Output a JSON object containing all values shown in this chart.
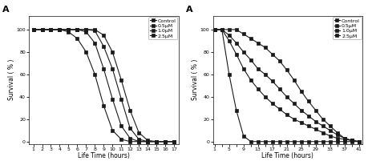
{
  "left_panel": {
    "label": "A",
    "xlabel": "Life Time (hours)",
    "ylabel": "Survival ( % )",
    "yticks": [
      0,
      20,
      40,
      60,
      80,
      100
    ],
    "ytick_labels": [
      "0",
      "20",
      "40",
      "60",
      "80",
      "100"
    ],
    "xticks": [
      1,
      2,
      3,
      4,
      5,
      6,
      7,
      8,
      9,
      10,
      11,
      12,
      13,
      14,
      15,
      16,
      17
    ],
    "xlim": [
      0.5,
      17.5
    ],
    "ylim": [
      -2,
      112
    ],
    "series": [
      {
        "label": "Control",
        "x": [
          1,
          2,
          3,
          4,
          5,
          6,
          7,
          8,
          9,
          10,
          11,
          12,
          13,
          14,
          15,
          16,
          17
        ],
        "y": [
          100,
          100,
          100,
          100,
          100,
          100,
          100,
          100,
          95,
          80,
          55,
          28,
          8,
          1,
          0,
          0,
          0
        ]
      },
      {
        "label": "0.5μM",
        "x": [
          1,
          2,
          3,
          4,
          5,
          6,
          7,
          8,
          9,
          10,
          11,
          12,
          13,
          14,
          15,
          16,
          17
        ],
        "y": [
          100,
          100,
          100,
          100,
          100,
          100,
          100,
          99,
          85,
          65,
          38,
          12,
          2,
          0,
          0,
          0,
          0
        ]
      },
      {
        "label": "1.0μM",
        "x": [
          1,
          2,
          3,
          4,
          5,
          6,
          7,
          8,
          9,
          10,
          11,
          12,
          13,
          14,
          15,
          16,
          17
        ],
        "y": [
          100,
          100,
          100,
          100,
          100,
          100,
          98,
          88,
          65,
          38,
          14,
          3,
          0,
          0,
          0,
          0,
          0
        ]
      },
      {
        "label": "2.5μM",
        "x": [
          1,
          2,
          3,
          4,
          5,
          6,
          7,
          8,
          9,
          10,
          11,
          12,
          13,
          14,
          15,
          16,
          17
        ],
        "y": [
          100,
          100,
          100,
          100,
          98,
          92,
          80,
          60,
          32,
          10,
          2,
          0,
          0,
          0,
          0,
          0,
          0
        ]
      }
    ]
  },
  "right_panel": {
    "label": "A",
    "xlabel": "Life Time (hours)",
    "ylabel": "Survival ( % )",
    "yticks": [
      0,
      20,
      40,
      60,
      80,
      100
    ],
    "ytick_labels": [
      "0",
      "20",
      "40",
      "60",
      "80",
      "100"
    ],
    "xticks": [
      1,
      3,
      5,
      7,
      9,
      11,
      13,
      15,
      17,
      19,
      21,
      23,
      25,
      27,
      29,
      31,
      33,
      35,
      37,
      39,
      41
    ],
    "xlim": [
      0.5,
      42
    ],
    "ylim": [
      -2,
      112
    ],
    "series": [
      {
        "label": "Control",
        "x": [
          1,
          3,
          5,
          7,
          9,
          11,
          13,
          15,
          17,
          19,
          21,
          23,
          25,
          27,
          29,
          31,
          33,
          35,
          37,
          39,
          41
        ],
        "y": [
          100,
          100,
          100,
          100,
          96,
          92,
          88,
          84,
          78,
          72,
          64,
          55,
          45,
          36,
          28,
          20,
          14,
          8,
          3,
          1,
          0
        ]
      },
      {
        "label": "0.5μM",
        "x": [
          1,
          3,
          5,
          7,
          9,
          11,
          13,
          15,
          17,
          19,
          21,
          23,
          25,
          27,
          29,
          31,
          33,
          35,
          37,
          39,
          41
        ],
        "y": [
          100,
          100,
          95,
          88,
          80,
          73,
          65,
          60,
          54,
          47,
          40,
          34,
          28,
          23,
          18,
          14,
          10,
          6,
          3,
          1,
          0
        ]
      },
      {
        "label": "1.0μM",
        "x": [
          1,
          3,
          5,
          7,
          9,
          11,
          13,
          15,
          17,
          19,
          21,
          23,
          25,
          27,
          29,
          31,
          33,
          35,
          37,
          39,
          41
        ],
        "y": [
          100,
          100,
          90,
          78,
          65,
          55,
          47,
          40,
          34,
          29,
          24,
          20,
          17,
          14,
          11,
          8,
          5,
          3,
          2,
          1,
          0
        ]
      },
      {
        "label": "2.5μM",
        "x": [
          1,
          3,
          5,
          7,
          9,
          11,
          13,
          15,
          17,
          19,
          21,
          23,
          25,
          27,
          29,
          31,
          33,
          35,
          37,
          39,
          41
        ],
        "y": [
          100,
          100,
          60,
          28,
          5,
          0,
          0,
          0,
          0,
          0,
          0,
          0,
          0,
          0,
          0,
          0,
          0,
          0,
          0,
          0,
          0
        ]
      }
    ]
  },
  "line_color": "#1a1a1a",
  "marker": "s",
  "markersize": 2.5,
  "linewidth": 0.8,
  "legend_fontsize": 4.5,
  "axis_fontsize": 5.5,
  "tick_fontsize": 4.5,
  "panel_label_fontsize": 8,
  "bg_color": "#ffffff"
}
